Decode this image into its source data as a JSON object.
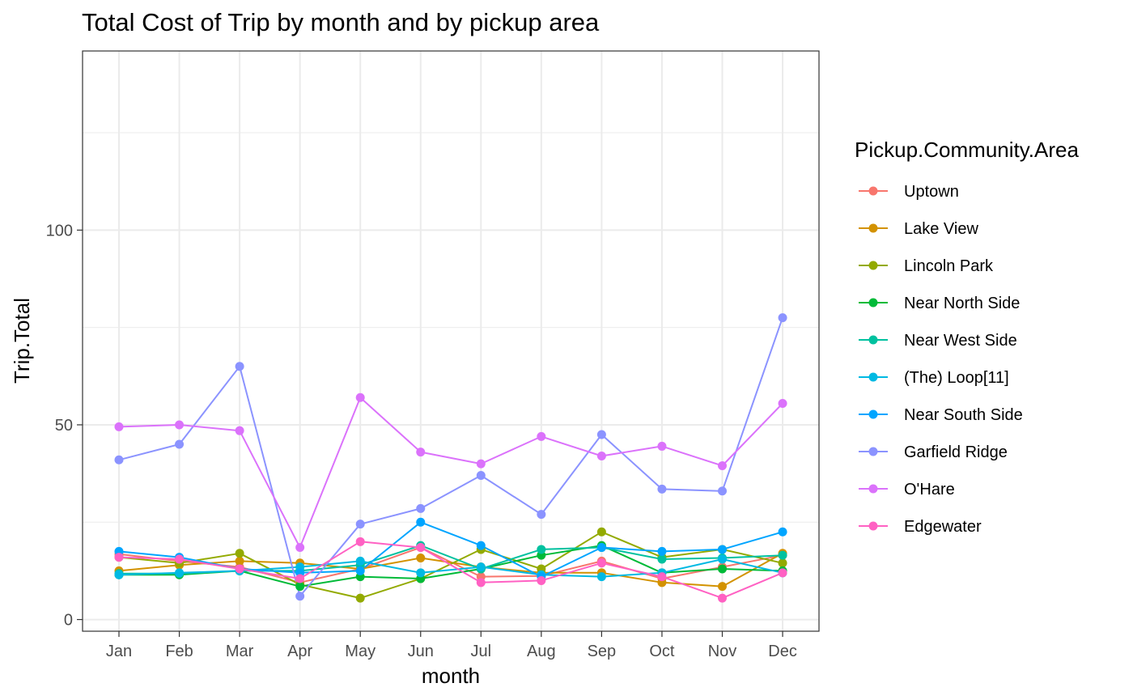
{
  "chart_data": {
    "type": "line",
    "title": "Total Cost of Trip by month and by pickup area",
    "xlabel": "month",
    "ylabel": "Trip.Total",
    "categories": [
      "Jan",
      "Feb",
      "Mar",
      "Apr",
      "May",
      "Jun",
      "Jul",
      "Aug",
      "Sep",
      "Oct",
      "Nov",
      "Dec"
    ],
    "ylim": [
      -3,
      146
    ],
    "y_ticks": [
      0,
      50,
      100
    ],
    "grid": true,
    "legend": {
      "title": "Pickup.Community.Area",
      "position": "right"
    },
    "series": [
      {
        "name": "Uptown",
        "color": "#F8766D",
        "values": [
          16.8,
          15.0,
          13.5,
          9.5,
          13.0,
          18.5,
          11.0,
          11.2,
          15.0,
          10.5,
          13.5,
          16.5
        ]
      },
      {
        "name": "Lake View",
        "color": "#D39200",
        "values": [
          12.5,
          14.0,
          15.0,
          14.5,
          13.0,
          15.8,
          13.5,
          12.0,
          12.0,
          9.5,
          8.5,
          17.0
        ]
      },
      {
        "name": "Lincoln Park",
        "color": "#93AA00",
        "values": [
          16.0,
          14.5,
          17.0,
          9.0,
          5.5,
          10.5,
          18.0,
          13.0,
          22.5,
          16.0,
          18.0,
          14.5
        ]
      },
      {
        "name": "Near North Side",
        "color": "#00BA38",
        "values": [
          11.5,
          11.5,
          12.5,
          8.5,
          11.0,
          10.5,
          13.0,
          16.5,
          19.0,
          12.0,
          13.0,
          12.5
        ]
      },
      {
        "name": "Near West Side",
        "color": "#00C19F",
        "values": [
          11.8,
          11.8,
          12.5,
          12.5,
          14.0,
          19.0,
          13.0,
          18.0,
          18.5,
          15.5,
          15.8,
          16.5
        ]
      },
      {
        "name": "(The)  Loop[11]",
        "color": "#00B9E3",
        "values": [
          11.5,
          12.0,
          12.5,
          13.5,
          15.0,
          12.0,
          13.5,
          11.5,
          11.0,
          12.0,
          15.5,
          12.0
        ]
      },
      {
        "name": "Near South Side",
        "color": "#00A5FF",
        "values": [
          17.5,
          16.0,
          13.0,
          12.0,
          12.5,
          25.0,
          19.0,
          11.0,
          18.5,
          17.5,
          18.0,
          22.5
        ]
      },
      {
        "name": "Garfield Ridge",
        "color": "#8B93FF",
        "values": [
          41.0,
          45.0,
          65.0,
          6.0,
          24.5,
          28.5,
          37.0,
          27.0,
          47.5,
          33.5,
          33.0,
          77.5
        ]
      },
      {
        "name": "O'Hare",
        "color": "#DB72FB",
        "values": [
          49.5,
          50.0,
          48.5,
          18.5,
          57.0,
          43.0,
          40.0,
          47.0,
          42.0,
          44.5,
          39.5,
          55.5
        ]
      },
      {
        "name": "Edgewater",
        "color": "#FF61C3",
        "values": [
          16.0,
          15.5,
          13.0,
          10.5,
          20.0,
          18.5,
          9.5,
          10.0,
          14.5,
          11.0,
          5.5,
          12.0
        ]
      }
    ]
  }
}
